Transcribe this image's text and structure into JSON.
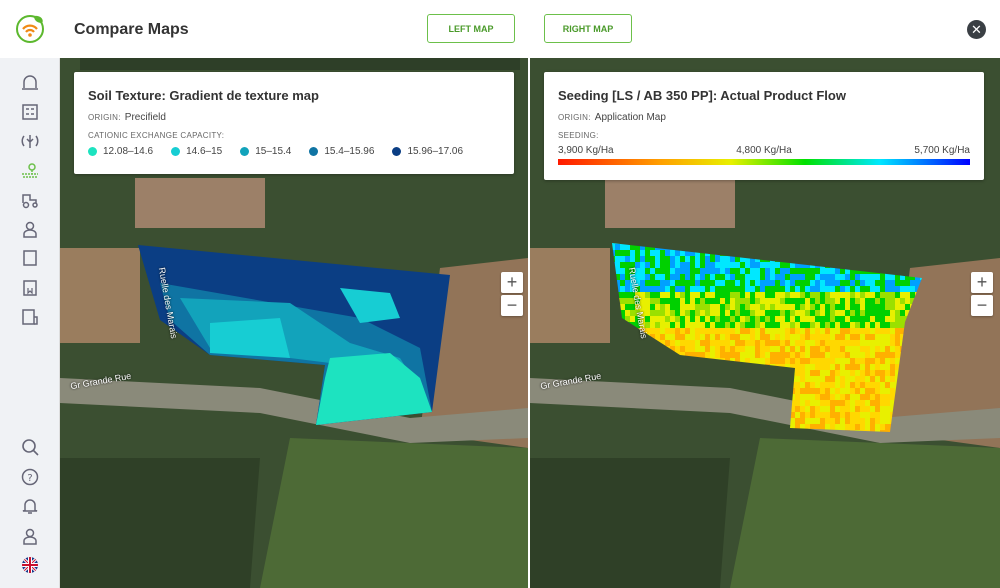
{
  "header": {
    "title": "Compare Maps",
    "left_map_label": "LEFT MAP",
    "right_map_label": "RIGHT MAP",
    "close_icon": "close-icon"
  },
  "sidebar": {
    "top_items": [
      "greenhouse-icon",
      "dashboard-icon",
      "crop-icon",
      "field-icon",
      "tractor-icon",
      "farmer-icon",
      "sack-icon",
      "notebook-icon",
      "report-icon"
    ],
    "active": "field-icon",
    "active_color": "#6cc04a",
    "bottom_items": [
      "search-icon",
      "help-icon",
      "bell-icon",
      "user-icon",
      "uk-flag-icon"
    ]
  },
  "left": {
    "title": "Soil Texture: Gradient de texture map",
    "origin_label": "ORIGIN:",
    "origin": "Precifield",
    "legend_label": "CATIONIC EXCHANGE CAPACITY:",
    "legend": [
      {
        "label": "12.08–14.6",
        "color": "#1de3c0"
      },
      {
        "label": "14.6–15",
        "color": "#17cdd3"
      },
      {
        "label": "15–15.4",
        "color": "#12a3bb"
      },
      {
        "label": "15.4–15.96",
        "color": "#0f74a3"
      },
      {
        "label": "15.96–17.06",
        "color": "#0b3e84"
      }
    ],
    "roads": [
      "Ruelle des Marais",
      "Gr Grande Rue"
    ]
  },
  "right": {
    "title": "Seeding [LS / AB 350 PP]: Actual Product Flow",
    "origin_label": "ORIGIN:",
    "origin": "Application Map",
    "legend_label": "SEEDING:",
    "min": "3,900 Kg/Ha",
    "mid": "4,800 Kg/Ha",
    "max": "5,700 Kg/Ha",
    "roads": [
      "Ruelle des Marais",
      "Gr Grande Rue"
    ]
  },
  "zoom": {
    "in": "+",
    "out": "−"
  }
}
